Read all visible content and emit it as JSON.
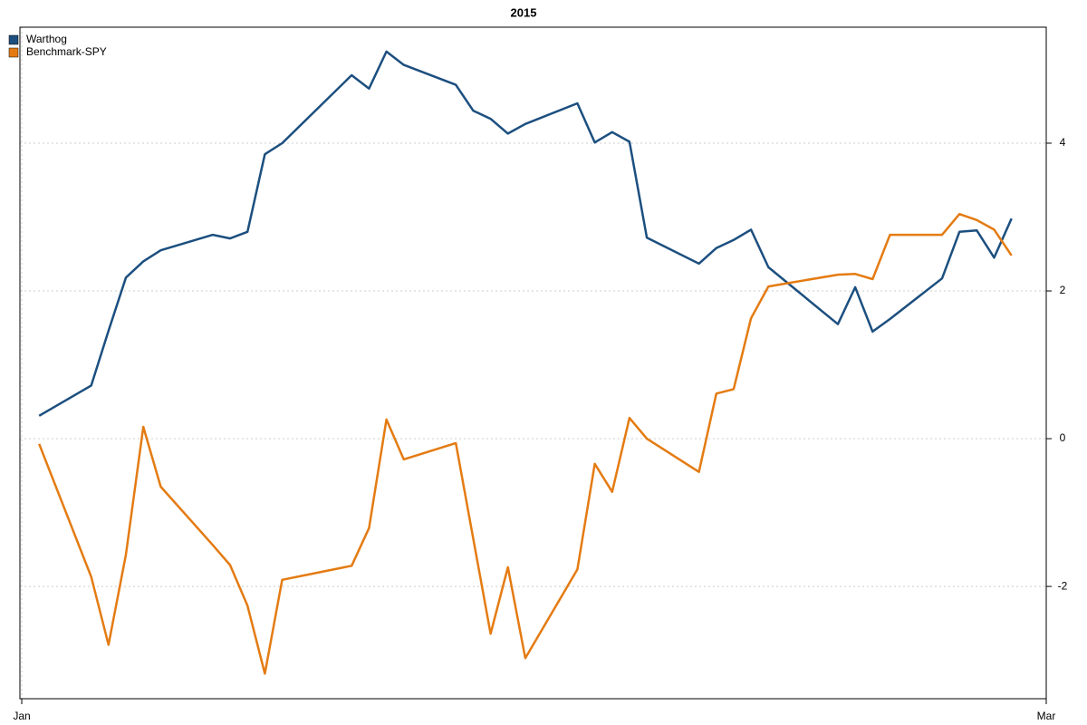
{
  "chart_data": {
    "type": "line",
    "title": "2015",
    "x": [
      1,
      4,
      5,
      6,
      7,
      8,
      11,
      12,
      13,
      14,
      15,
      19,
      20,
      21,
      22,
      25,
      26,
      27,
      28,
      29,
      32,
      33,
      34,
      35,
      36,
      39,
      40,
      41,
      42,
      43,
      47,
      48,
      49,
      50,
      53,
      54,
      55,
      56,
      57
    ],
    "xlim": [
      0,
      59
    ],
    "xticks": [
      {
        "value": 0,
        "label": "Jan"
      },
      {
        "value": 59,
        "label": "Mar"
      }
    ],
    "ylim": [
      -3.52,
      5.57
    ],
    "yticks": [
      -2,
      0,
      2,
      4
    ],
    "grid": true,
    "legend": "top-left",
    "series": [
      {
        "name": "Warthog",
        "color": "#1c4f7f",
        "values": [
          0.31,
          0.72,
          1.46,
          2.18,
          2.4,
          2.55,
          2.76,
          2.71,
          2.8,
          3.85,
          4.0,
          4.92,
          4.74,
          5.24,
          5.06,
          4.79,
          4.44,
          4.33,
          4.13,
          4.26,
          4.54,
          4.01,
          4.15,
          4.02,
          2.72,
          2.37,
          2.58,
          2.69,
          2.83,
          2.32,
          1.55,
          2.05,
          1.45,
          1.62,
          2.17,
          2.8,
          2.82,
          2.45,
          2.98
        ]
      },
      {
        "name": "Benchmark-SPY",
        "color": "#e47b12",
        "values": [
          -0.07,
          -1.87,
          -2.79,
          -1.57,
          0.16,
          -0.65,
          -1.44,
          -1.71,
          -2.26,
          -3.18,
          -1.91,
          -1.72,
          -1.21,
          0.26,
          -0.28,
          -0.06,
          -1.35,
          -2.64,
          -1.74,
          -2.97,
          -1.77,
          -0.34,
          -0.72,
          0.28,
          0.0,
          -0.45,
          0.61,
          0.67,
          1.63,
          2.06,
          2.22,
          2.23,
          2.16,
          2.76,
          2.76,
          3.04,
          2.96,
          2.83,
          2.48
        ]
      }
    ]
  }
}
